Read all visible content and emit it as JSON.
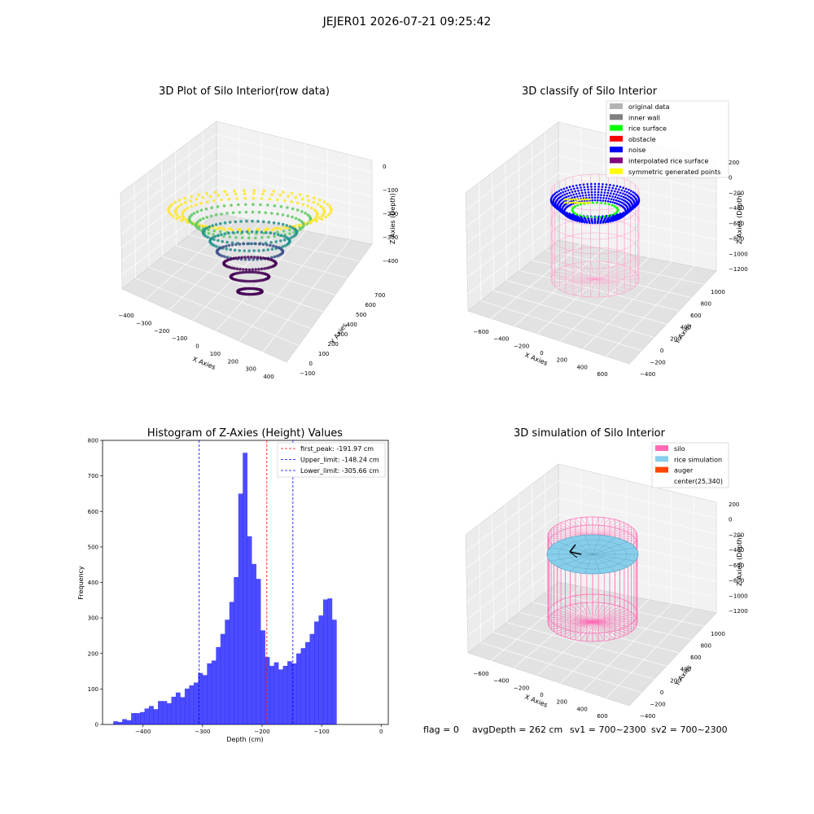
{
  "figure": {
    "suptitle": "JEJER01 2026-07-21 09:25:42",
    "footer": {
      "flag": "flag = 0",
      "avg_depth": "avgDepth = 262 cm",
      "sv1": "sv1 = 700~2300",
      "sv2": "sv2 = 700~2300"
    }
  },
  "panel_raw": {
    "title": "3D Plot of Silo Interior(row data)",
    "xlabel": "X Axies",
    "ylabel": "Y Axies",
    "zlabel": "Z Axies (Depth)",
    "x_ticks": [
      "−400",
      "−300",
      "−200",
      "−100",
      "0",
      "100",
      "200",
      "300",
      "400"
    ],
    "y_ticks": [
      "−100",
      "0",
      "100",
      "200",
      "300",
      "400",
      "500",
      "600",
      "700"
    ],
    "z_ticks": [
      "0",
      "−100",
      "−200",
      "−300",
      "−400"
    ],
    "colormap": [
      "#440154",
      "#3b528b",
      "#21918c",
      "#5ec962",
      "#fde725"
    ]
  },
  "panel_classify": {
    "title": "3D classify of Silo Interior",
    "xlabel": "X Axies",
    "ylabel": "Y Axies",
    "zlabel": "Z Axies (Depth)",
    "x_ticks": [
      "−600",
      "−400",
      "−200",
      "0",
      "200",
      "400",
      "600"
    ],
    "y_ticks": [
      "−400",
      "−200",
      "0",
      "200",
      "400",
      "600",
      "800",
      "1000"
    ],
    "z_ticks": [
      "200",
      "0",
      "−200",
      "−400",
      "−600",
      "−800",
      "−1000",
      "−1200"
    ],
    "legend": [
      {
        "label": "original data",
        "color": "#b3b3b3"
      },
      {
        "label": "inner wall",
        "color": "#808080"
      },
      {
        "label": "rice surface",
        "color": "#00ff00"
      },
      {
        "label": "obstacle",
        "color": "#ff0000"
      },
      {
        "label": "noise",
        "color": "#0000ff"
      },
      {
        "label": "interpolated rice surface",
        "color": "#800080"
      },
      {
        "label": "symmetric generated points",
        "color": "#ffff00"
      }
    ]
  },
  "panel_simulation": {
    "title": "3D simulation of Silo Interior",
    "xlabel": "X Axies",
    "ylabel": "Y Axies",
    "zlabel": "Z Axies (Depth)",
    "x_ticks": [
      "−600",
      "−400",
      "−200",
      "0",
      "200",
      "400",
      "600"
    ],
    "y_ticks": [
      "−400",
      "−200",
      "0",
      "200",
      "400",
      "600",
      "800",
      "1000"
    ],
    "z_ticks": [
      "200",
      "0",
      "−200",
      "−400",
      "−600",
      "−800",
      "−1000",
      "−1200"
    ],
    "legend": [
      {
        "label": "silo",
        "color": "#ff69b4"
      },
      {
        "label": "rice simulation",
        "color": "#87ceeb"
      },
      {
        "label": "auger",
        "color": "#ff4500"
      },
      {
        "label": "center(25,340)",
        "color": ""
      }
    ]
  },
  "chart_data": {
    "type": "bar",
    "title": "Histogram of Z-Axies (Height) Values",
    "xlabel": "Depth (cm)",
    "ylabel": "Frequency",
    "bar_color": "#0000ff",
    "bin_start": -450,
    "bin_width": 7.5,
    "values": [
      9,
      7,
      15,
      12,
      32,
      32,
      35,
      45,
      52,
      43,
      66,
      66,
      60,
      78,
      90,
      77,
      101,
      110,
      118,
      145,
      139,
      172,
      180,
      218,
      255,
      295,
      345,
      415,
      650,
      765,
      530,
      452,
      410,
      265,
      190,
      165,
      175,
      155,
      165,
      178,
      172,
      200,
      215,
      232,
      255,
      290,
      307,
      352,
      355,
      295
    ],
    "xlim": [
      -468,
      12
    ],
    "ylim": [
      0,
      800
    ],
    "x_ticks": [
      -400,
      -300,
      -200,
      -100,
      0
    ],
    "y_ticks": [
      0,
      100,
      200,
      300,
      400,
      500,
      600,
      700,
      800
    ],
    "vlines": [
      {
        "label": "first_peak: -191.97 cm",
        "x": -191.97,
        "color": "#ff0000"
      },
      {
        "label": "Upper_limit: -148.24 cm",
        "x": -148.24,
        "color": "#0000ff"
      },
      {
        "label": "Lower_limit: -305.66 cm",
        "x": -305.66,
        "color": "#0000ff"
      }
    ],
    "legend_position": "top-right"
  }
}
